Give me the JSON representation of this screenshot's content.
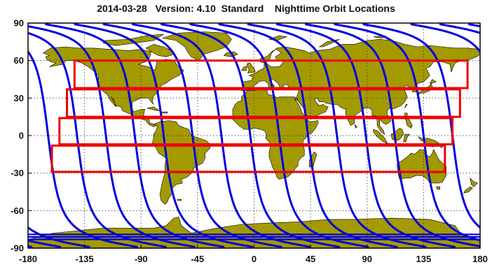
{
  "title": "2014-03-28   Version: 4.10  Standard    Nighttime Orbit Locations",
  "x_ticks": [
    "-180",
    "-135",
    "-90",
    "-45",
    "0",
    "45",
    "90",
    "135",
    "180"
  ],
  "y_ticks": [
    "90",
    "60",
    "30",
    "0",
    "-30",
    "-60",
    "-90"
  ],
  "colors": {
    "land": "#a39a00",
    "orbit": "#0000e0",
    "box": "#ee0000",
    "grid": "#333333",
    "frame": "#000000"
  },
  "chart_data": {
    "type": "map",
    "projection": "equirectangular",
    "lon_range": [
      -180,
      180
    ],
    "lat_range": [
      -90,
      90
    ],
    "grid": "dotted",
    "orbit_track_count": 15,
    "orbit_crossings_at_equator_lon": [
      -164,
      -141,
      -118,
      -95,
      -72,
      -49,
      -26,
      -3,
      20,
      43,
      66,
      89,
      112,
      135,
      158
    ],
    "boxes": [
      {
        "lon": [
          -143,
          170
        ],
        "lat": [
          38,
          60
        ]
      },
      {
        "lon": [
          -149,
          164
        ],
        "lat": [
          15,
          37
        ]
      },
      {
        "lon": [
          -155,
          158
        ],
        "lat": [
          -7,
          14
        ]
      },
      {
        "lon": [
          -161,
          152
        ],
        "lat": [
          -29,
          -8
        ]
      }
    ]
  }
}
